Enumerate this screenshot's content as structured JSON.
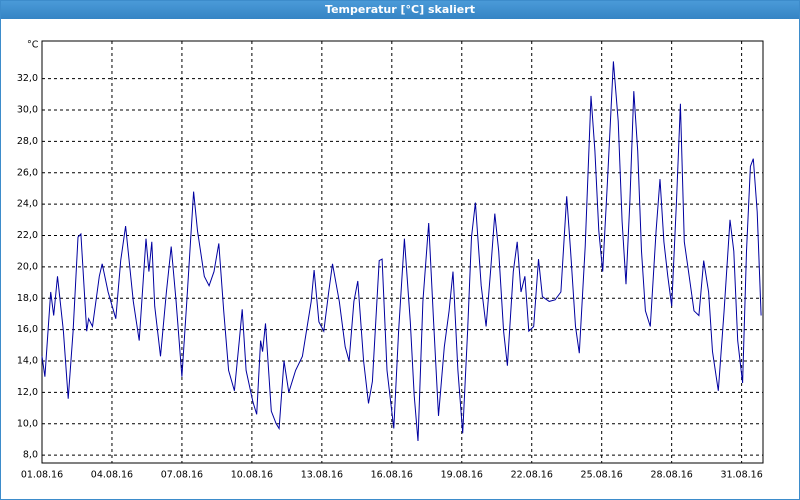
{
  "chart_data": {
    "type": "line",
    "title": "Temperatur [°C] skaliert",
    "y_label": "°C",
    "x": [
      "2016-08-01T00:00",
      "2016-08-01T03:00",
      "2016-08-01T09:00",
      "2016-08-01T12:00",
      "2016-08-01T16:00",
      "2016-08-01T22:00",
      "2016-08-02T03:00",
      "2016-08-02T08:00",
      "2016-08-02T13:00",
      "2016-08-02T16:00",
      "2016-08-02T22:00",
      "2016-08-03T00:00",
      "2016-08-03T04:00",
      "2016-08-03T11:00",
      "2016-08-03T14:00",
      "2016-08-03T20:00",
      "2016-08-04T04:00",
      "2016-08-04T09:00",
      "2016-08-04T14:00",
      "2016-08-04T22:00",
      "2016-08-05T04:00",
      "2016-08-05T11:00",
      "2016-08-05T14:00",
      "2016-08-05T17:00",
      "2016-08-05T20:00",
      "2016-08-06T02:00",
      "2016-08-06T08:00",
      "2016-08-06T13:00",
      "2016-08-06T18:00",
      "2016-08-07T00:00",
      "2016-08-07T05:00",
      "2016-08-07T12:00",
      "2016-08-07T16:00",
      "2016-08-07T23:00",
      "2016-08-08T04:00",
      "2016-08-08T09:00",
      "2016-08-08T14:00",
      "2016-08-08T19:00",
      "2016-08-09T00:00",
      "2016-08-09T06:00",
      "2016-08-09T11:00",
      "2016-08-09T14:00",
      "2016-08-09T18:00",
      "2016-08-10T01:00",
      "2016-08-10T05:00",
      "2016-08-10T09:00",
      "2016-08-10T11:00",
      "2016-08-10T14:00",
      "2016-08-10T20:00",
      "2016-08-11T01:00",
      "2016-08-11T04:00",
      "2016-08-11T09:00",
      "2016-08-11T14:00",
      "2016-08-11T21:00",
      "2016-08-12T04:00",
      "2016-08-12T13:00",
      "2016-08-12T16:00",
      "2016-08-12T21:00",
      "2016-08-13T02:00",
      "2016-08-13T07:00",
      "2016-08-13T11:00",
      "2016-08-13T18:00",
      "2016-08-14T00:00",
      "2016-08-14T04:00",
      "2016-08-14T09:00",
      "2016-08-14T13:00",
      "2016-08-14T19:00",
      "2016-08-15T00:00",
      "2016-08-15T04:00",
      "2016-08-15T11:00",
      "2016-08-15T14:00",
      "2016-08-15T19:00",
      "2016-08-16T02:00",
      "2016-08-16T07:00",
      "2016-08-16T13:00",
      "2016-08-16T19:00",
      "2016-08-16T23:00",
      "2016-08-17T03:00",
      "2016-08-17T08:00",
      "2016-08-17T14:00",
      "2016-08-17T19:00",
      "2016-08-18T00:00",
      "2016-08-18T06:00",
      "2016-08-18T11:00",
      "2016-08-18T15:00",
      "2016-08-18T20:00",
      "2016-08-19T01:00",
      "2016-08-19T06:00",
      "2016-08-19T10:00",
      "2016-08-19T14:00",
      "2016-08-19T20:00",
      "2016-08-20T01:00",
      "2016-08-20T06:00",
      "2016-08-20T10:00",
      "2016-08-20T14:00",
      "2016-08-20T19:00",
      "2016-08-20T23:00",
      "2016-08-21T05:00",
      "2016-08-21T09:00",
      "2016-08-21T13:00",
      "2016-08-21T17:00",
      "2016-08-21T21:00",
      "2016-08-22T02:00",
      "2016-08-22T07:00",
      "2016-08-22T11:00",
      "2016-08-22T18:00",
      "2016-08-23T00:00",
      "2016-08-23T06:00",
      "2016-08-23T12:00",
      "2016-08-23T16:00",
      "2016-08-23T21:00",
      "2016-08-24T01:00",
      "2016-08-24T07:00",
      "2016-08-24T13:00",
      "2016-08-24T17:00",
      "2016-08-24T21:00",
      "2016-08-25T01:00",
      "2016-08-25T06:00",
      "2016-08-25T12:00",
      "2016-08-25T17:00",
      "2016-08-25T21:00",
      "2016-08-26T01:00",
      "2016-08-26T05:00",
      "2016-08-26T09:00",
      "2016-08-26T13:00",
      "2016-08-26T17:00",
      "2016-08-26T21:00",
      "2016-08-27T02:00",
      "2016-08-27T08:00",
      "2016-08-27T12:00",
      "2016-08-27T16:00",
      "2016-08-27T20:00",
      "2016-08-28T00:00",
      "2016-08-28T05:00",
      "2016-08-28T09:00",
      "2016-08-28T13:00",
      "2016-08-28T18:00",
      "2016-08-28T23:00",
      "2016-08-29T04:00",
      "2016-08-29T09:00",
      "2016-08-29T14:00",
      "2016-08-29T18:00",
      "2016-08-30T00:00",
      "2016-08-30T06:00",
      "2016-08-30T12:00",
      "2016-08-30T16:00",
      "2016-08-30T20:00",
      "2016-08-31T01:00",
      "2016-08-31T05:00",
      "2016-08-31T09:00",
      "2016-08-31T12:00",
      "2016-08-31T16:00",
      "2016-08-31T20:00"
    ],
    "series": [
      {
        "color": "#0000a0",
        "values": [
          14.3,
          13.0,
          18.4,
          16.9,
          19.4,
          15.9,
          11.6,
          15.9,
          21.9,
          22.1,
          15.9,
          16.7,
          16.2,
          19.4,
          20.2,
          18.4,
          16.7,
          20.4,
          22.6,
          17.8,
          15.3,
          21.8,
          19.7,
          21.6,
          17.5,
          14.3,
          18.4,
          21.3,
          17.8,
          13.0,
          17.8,
          24.8,
          22.3,
          19.4,
          18.8,
          19.7,
          21.5,
          17.2,
          13.4,
          12.1,
          15.3,
          17.3,
          13.4,
          11.4,
          10.6,
          15.3,
          14.6,
          16.4,
          10.8,
          10.0,
          9.7,
          14.0,
          12.0,
          13.4,
          14.3,
          17.8,
          19.8,
          16.5,
          15.9,
          18.4,
          20.2,
          17.8,
          14.9,
          14.0,
          17.8,
          19.1,
          14.0,
          11.3,
          12.7,
          20.4,
          20.5,
          13.4,
          9.7,
          15.9,
          21.8,
          16.5,
          11.8,
          8.9,
          17.8,
          22.8,
          16.5,
          10.5,
          14.9,
          17.2,
          19.7,
          13.4,
          9.4,
          15.9,
          21.9,
          24.1,
          18.8,
          16.2,
          20.0,
          23.4,
          21.0,
          15.9,
          13.7,
          19.7,
          21.6,
          18.4,
          19.4,
          15.9,
          16.2,
          20.5,
          18.1,
          17.8,
          17.9,
          18.4,
          24.5,
          21.0,
          16.2,
          14.5,
          21.3,
          30.9,
          27.4,
          22.3,
          19.7,
          25.5,
          33.1,
          29.3,
          22.9,
          18.9,
          24.2,
          31.2,
          27.4,
          21.0,
          17.2,
          16.2,
          22.3,
          25.6,
          21.6,
          19.4,
          17.5,
          24.2,
          30.4,
          21.6,
          19.4,
          17.2,
          16.9,
          20.4,
          18.4,
          14.6,
          12.1,
          17.2,
          23.0,
          21.0,
          15.3,
          12.6,
          21.0,
          26.4,
          26.9,
          23.5,
          16.9
        ]
      }
    ],
    "xlim": [
      "2016-08-01T00:00",
      "2016-08-31T22:00"
    ],
    "xticks": [
      {
        "value": "2016-08-01",
        "label": "01.08.16"
      },
      {
        "value": "2016-08-04",
        "label": "04.08.16"
      },
      {
        "value": "2016-08-07",
        "label": "07.08.16"
      },
      {
        "value": "2016-08-10",
        "label": "10.08.16"
      },
      {
        "value": "2016-08-13",
        "label": "13.08.16"
      },
      {
        "value": "2016-08-16",
        "label": "16.08.16"
      },
      {
        "value": "2016-08-19",
        "label": "19.08.16"
      },
      {
        "value": "2016-08-22",
        "label": "22.08.16"
      },
      {
        "value": "2016-08-25",
        "label": "25.08.16"
      },
      {
        "value": "2016-08-28",
        "label": "28.08.16"
      },
      {
        "value": "2016-08-31",
        "label": "31.08.16"
      }
    ],
    "ylim": [
      7.5,
      34.4
    ],
    "yticks": [
      {
        "value": 8,
        "label": "8,0"
      },
      {
        "value": 10,
        "label": "10,0"
      },
      {
        "value": 12,
        "label": "12,0"
      },
      {
        "value": 14,
        "label": "14,0"
      },
      {
        "value": 16,
        "label": "16,0"
      },
      {
        "value": 18,
        "label": "18,0"
      },
      {
        "value": 20,
        "label": "20,0"
      },
      {
        "value": 22,
        "label": "22,0"
      },
      {
        "value": 24,
        "label": "24,0"
      },
      {
        "value": 26,
        "label": "26,0"
      },
      {
        "value": 28,
        "label": "28,0"
      },
      {
        "value": 30,
        "label": "30,0"
      },
      {
        "value": 32,
        "label": "32,0"
      }
    ],
    "grid": true
  }
}
